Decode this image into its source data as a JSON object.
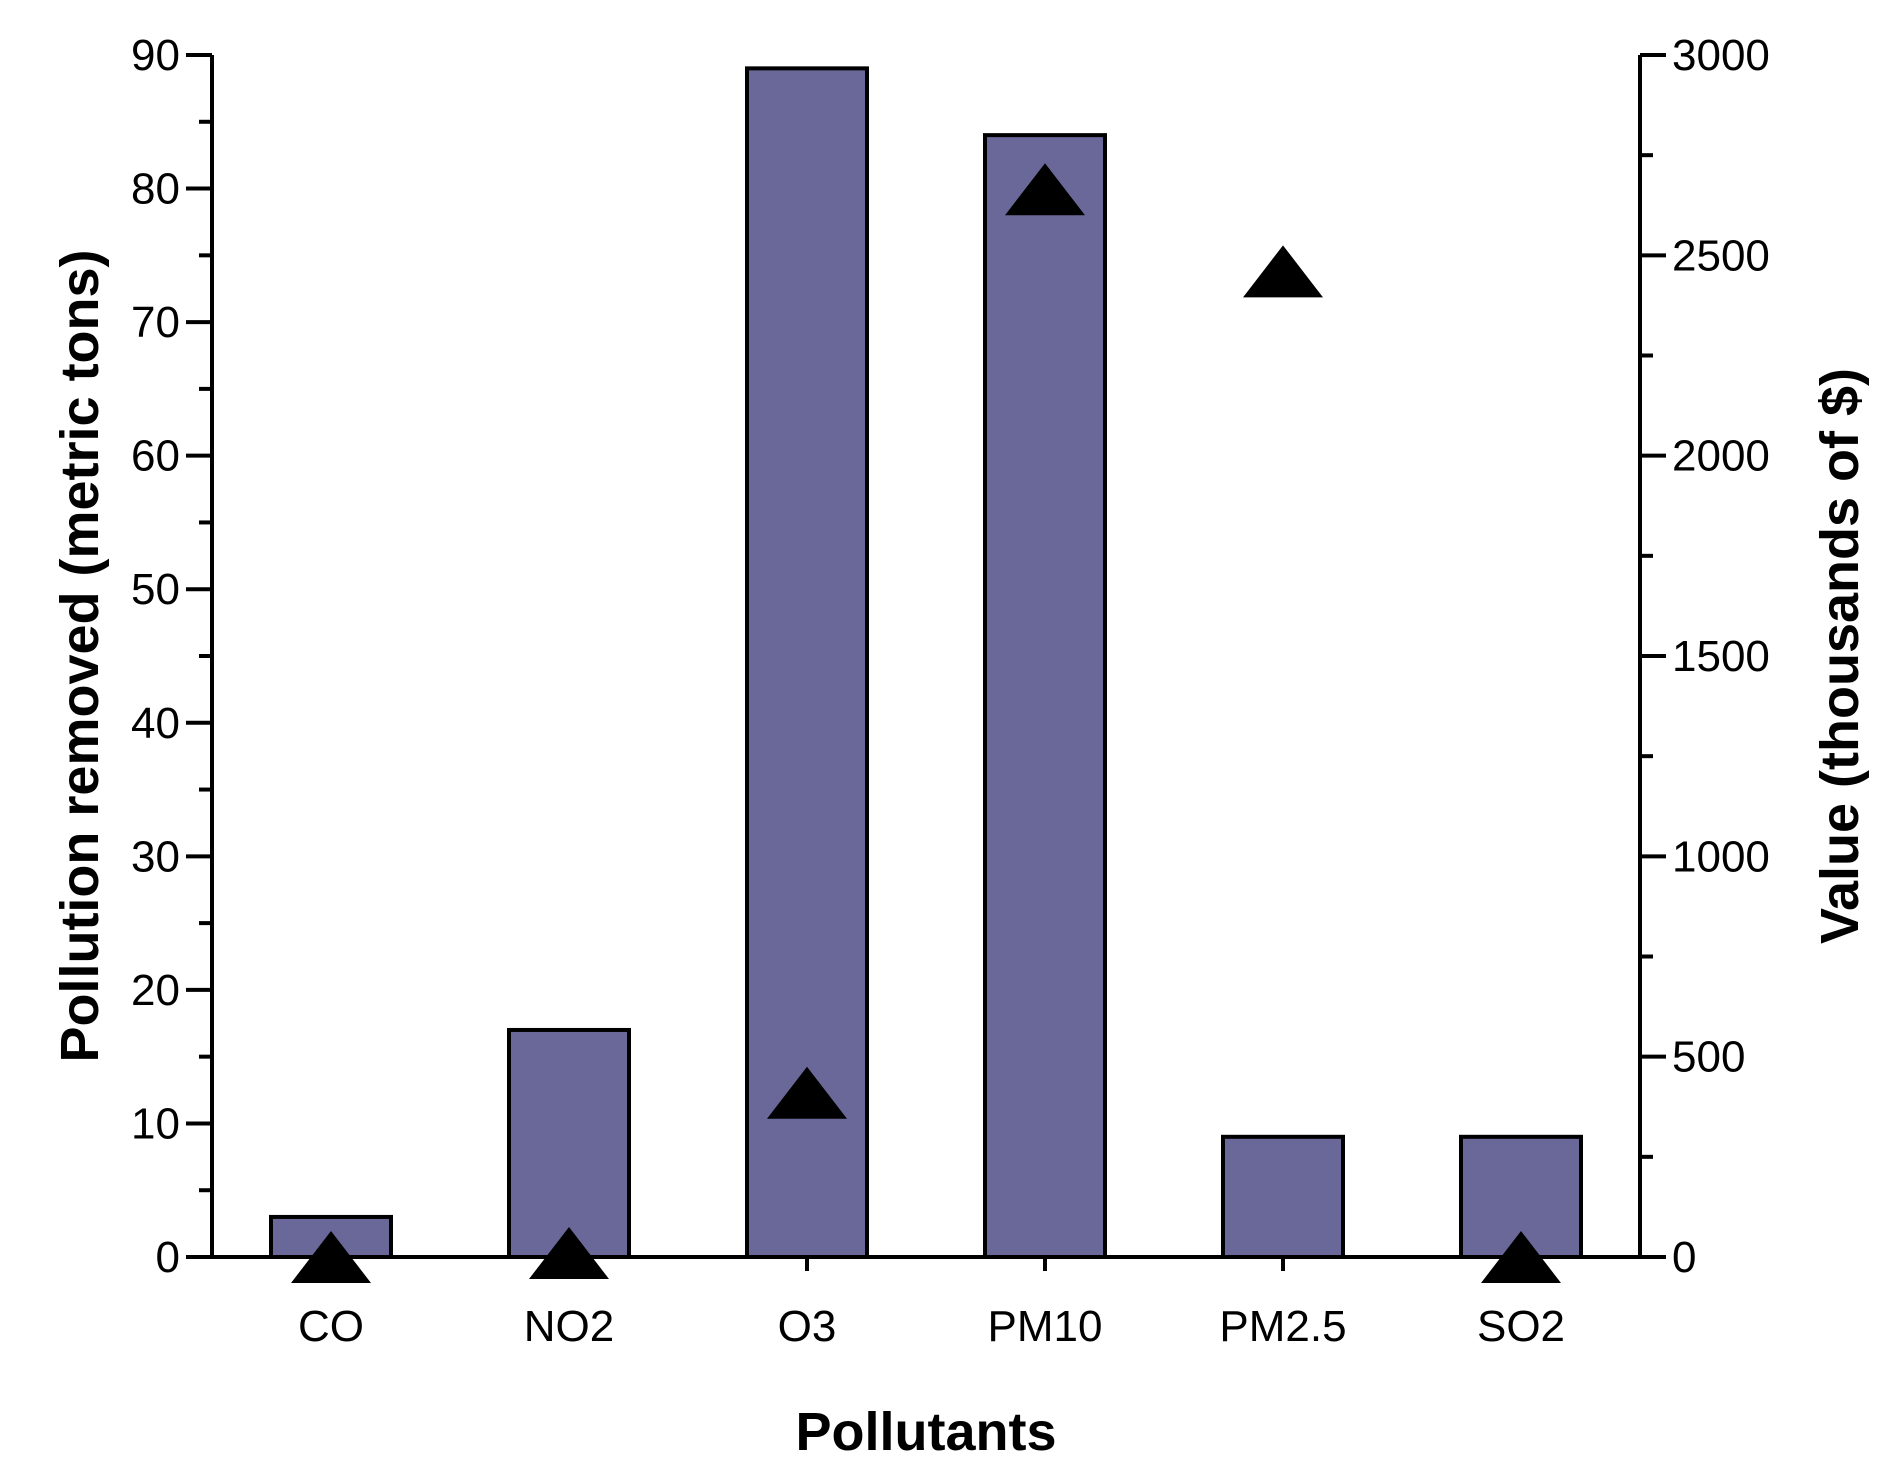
{
  "chart_data": {
    "type": "bar",
    "title": "",
    "xlabel": "Pollutants",
    "ylabel": "Pollution removed (metric tons)",
    "y2label": "Value (thousands of $)",
    "categories": [
      "CO",
      "NO2",
      "O3",
      "PM10",
      "PM2.5",
      "SO2"
    ],
    "ylim": [
      0,
      90
    ],
    "y2lim": [
      0,
      3000
    ],
    "yticks": [
      0,
      10,
      20,
      30,
      40,
      50,
      60,
      70,
      80,
      90
    ],
    "y2ticks": [
      0,
      500,
      1000,
      1500,
      2000,
      2500,
      3000
    ],
    "series": [
      {
        "type": "bar",
        "axis": "left",
        "values": [
          3,
          17,
          89,
          84,
          9,
          9
        ],
        "color": "#6a6898"
      },
      {
        "type": "scatter",
        "axis": "right",
        "marker": "triangle",
        "values": [
          0,
          10,
          410,
          2665,
          2460,
          0
        ],
        "color": "#000000"
      }
    ],
    "grid": false,
    "legend": "none"
  }
}
